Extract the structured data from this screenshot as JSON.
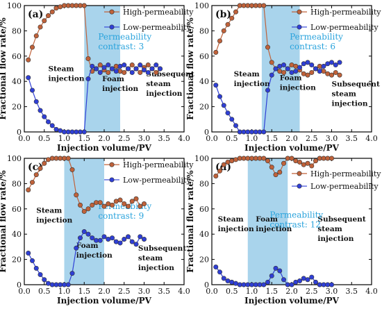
{
  "colors": {
    "high": "#c0623a",
    "low": "#2f3fd6",
    "foam_band": "#a9d4ec",
    "contrast_text": "#2aa3dc"
  },
  "chart_data": [
    {
      "type": "line",
      "panel_label": "(a)",
      "xlabel": "Injection volume/PV",
      "ylabel": "Fractional flow rate/%",
      "xlim": [
        0.0,
        4.0
      ],
      "ylim": [
        0,
        100
      ],
      "x_ticks": [
        "0.0",
        "0.5",
        "1.0",
        "1.5",
        "2.0",
        "2.5",
        "3.0",
        "3.5",
        "4.0"
      ],
      "y_ticks": [
        "0",
        "20",
        "40",
        "60",
        "80",
        "100"
      ],
      "foam_band": [
        1.5,
        2.4
      ],
      "annotation": "Permeability contrast: 3",
      "annotation_lines": [
        "Permeability",
        "contrast: 3"
      ],
      "phase_labels": [
        {
          "lines": [
            "Steam",
            "injection"
          ]
        },
        {
          "lines": [
            "Foam",
            "injection"
          ]
        },
        {
          "lines": [
            "Subsequent",
            "steam",
            "injection"
          ]
        }
      ],
      "legend_position": "top-right",
      "series": [
        {
          "name": "High-permeability",
          "x": [
            0.1,
            0.2,
            0.3,
            0.4,
            0.5,
            0.6,
            0.7,
            0.8,
            0.9,
            1.0,
            1.1,
            1.2,
            1.3,
            1.4,
            1.5,
            1.6,
            1.7,
            1.8,
            1.9,
            2.0,
            2.1,
            2.2,
            2.3,
            2.4,
            2.5,
            2.6,
            2.7,
            2.8,
            2.9,
            3.0,
            3.1,
            3.2,
            3.3,
            3.4
          ],
          "y": [
            57,
            67,
            76,
            83,
            88,
            92,
            95,
            98,
            99,
            100,
            100,
            100,
            100,
            100,
            100,
            58,
            48,
            50,
            53,
            49,
            47,
            50,
            52,
            48,
            47,
            50,
            53,
            50,
            47,
            51,
            53,
            50,
            47,
            50
          ]
        },
        {
          "name": "Low-permeability",
          "x": [
            0.1,
            0.2,
            0.3,
            0.4,
            0.5,
            0.6,
            0.7,
            0.8,
            0.9,
            1.0,
            1.1,
            1.2,
            1.3,
            1.4,
            1.5,
            1.6,
            1.7,
            1.8,
            1.9,
            2.0,
            2.1,
            2.2,
            2.3,
            2.4,
            2.5,
            2.6,
            2.7,
            2.8,
            2.9,
            3.0,
            3.1,
            3.2,
            3.3,
            3.4
          ],
          "y": [
            43,
            33,
            24,
            17,
            12,
            8,
            5,
            2,
            1,
            0,
            0,
            0,
            0,
            0,
            0,
            42,
            52,
            50,
            47,
            51,
            53,
            50,
            48,
            52,
            53,
            50,
            47,
            50,
            53,
            49,
            47,
            50,
            53,
            50
          ]
        }
      ]
    },
    {
      "type": "line",
      "panel_label": "(b)",
      "xlabel": "Injection volume/PV",
      "ylabel": "Fractional flow rate/%",
      "xlim": [
        0.0,
        4.0
      ],
      "ylim": [
        0,
        100
      ],
      "x_ticks": [
        "0.0",
        "0.5",
        "1.0",
        "1.5",
        "2.0",
        "2.5",
        "3.0",
        "3.5",
        "4.0"
      ],
      "y_ticks": [
        "0",
        "20",
        "40",
        "60",
        "80",
        "100"
      ],
      "foam_band": [
        1.25,
        2.2
      ],
      "annotation": "Permeability contrast: 6",
      "annotation_lines": [
        "Permeability",
        "contrast: 6"
      ],
      "phase_labels": [
        {
          "lines": [
            "Steam",
            "injection"
          ]
        },
        {
          "lines": [
            "Foam",
            "injection"
          ]
        },
        {
          "lines": [
            "Subsequent",
            "steam",
            "injection"
          ]
        }
      ],
      "legend_position": "top-right",
      "series": [
        {
          "name": "High-permeability",
          "x": [
            0.1,
            0.2,
            0.3,
            0.4,
            0.5,
            0.6,
            0.7,
            0.8,
            0.9,
            1.0,
            1.1,
            1.2,
            1.3,
            1.4,
            1.5,
            1.6,
            1.7,
            1.8,
            1.9,
            2.0,
            2.1,
            2.2,
            2.3,
            2.4,
            2.5,
            2.6,
            2.7,
            2.8,
            2.9,
            3.0,
            3.1,
            3.2
          ],
          "y": [
            63,
            72,
            80,
            85,
            90,
            95,
            100,
            100,
            100,
            100,
            100,
            100,
            100,
            67,
            55,
            50,
            48,
            47,
            50,
            53,
            52,
            49,
            46,
            45,
            47,
            50,
            52,
            48,
            46,
            45,
            47,
            45
          ]
        },
        {
          "name": "Low-permeability",
          "x": [
            0.1,
            0.2,
            0.3,
            0.4,
            0.5,
            0.6,
            0.7,
            0.8,
            0.9,
            1.0,
            1.1,
            1.2,
            1.3,
            1.4,
            1.5,
            1.6,
            1.7,
            1.8,
            1.9,
            2.0,
            2.1,
            2.2,
            2.3,
            2.4,
            2.5,
            2.6,
            2.7,
            2.8,
            2.9,
            3.0,
            3.1,
            3.2
          ],
          "y": [
            37,
            28,
            21,
            15,
            10,
            5,
            0,
            0,
            0,
            0,
            0,
            0,
            0,
            33,
            45,
            50,
            52,
            53,
            50,
            47,
            48,
            51,
            54,
            55,
            53,
            50,
            48,
            52,
            54,
            55,
            53,
            55
          ]
        }
      ]
    },
    {
      "type": "line",
      "panel_label": "(c)",
      "xlabel": "Injection volume/PV",
      "ylabel": "Fractional flow rate/%",
      "xlim": [
        0.0,
        4.0
      ],
      "ylim": [
        0,
        100
      ],
      "x_ticks": [
        "0.0",
        "0.5",
        "1.0",
        "1.5",
        "2.0",
        "2.5",
        "3.0",
        "3.5",
        "4.0"
      ],
      "y_ticks": [
        "0",
        "20",
        "40",
        "60",
        "80",
        "100"
      ],
      "foam_band": [
        1.0,
        2.0
      ],
      "annotation": "Permeability contrast: 9",
      "annotation_lines": [
        "Permeability",
        "contrast: 9"
      ],
      "phase_labels": [
        {
          "lines": [
            "Steam",
            "injection"
          ]
        },
        {
          "lines": [
            "Foam",
            "injection"
          ]
        },
        {
          "lines": [
            "Subsequent",
            "steam",
            "injection"
          ]
        }
      ],
      "legend_position": "top-right",
      "series": [
        {
          "name": "High-permeability",
          "x": [
            0.1,
            0.2,
            0.3,
            0.4,
            0.5,
            0.6,
            0.7,
            0.8,
            0.9,
            1.0,
            1.1,
            1.2,
            1.3,
            1.4,
            1.5,
            1.6,
            1.7,
            1.8,
            1.9,
            2.0,
            2.1,
            2.2,
            2.3,
            2.4,
            2.5,
            2.6,
            2.7,
            2.8,
            2.9,
            3.0
          ],
          "y": [
            75,
            81,
            87,
            92,
            96,
            99,
            100,
            100,
            100,
            100,
            100,
            91,
            71,
            63,
            58,
            60,
            63,
            65,
            65,
            62,
            64,
            63,
            66,
            67,
            64,
            62,
            66,
            68,
            62,
            64
          ]
        },
        {
          "name": "Low-permeability",
          "x": [
            0.1,
            0.2,
            0.3,
            0.4,
            0.5,
            0.6,
            0.7,
            0.8,
            0.9,
            1.0,
            1.1,
            1.2,
            1.3,
            1.4,
            1.5,
            1.6,
            1.7,
            1.8,
            1.9,
            2.0,
            2.1,
            2.2,
            2.3,
            2.4,
            2.5,
            2.6,
            2.7,
            2.8,
            2.9,
            3.0
          ],
          "y": [
            25,
            19,
            13,
            8,
            4,
            1,
            0,
            0,
            0,
            0,
            0,
            9,
            29,
            37,
            42,
            40,
            37,
            35,
            35,
            38,
            36,
            37,
            34,
            33,
            36,
            38,
            34,
            32,
            38,
            36
          ]
        }
      ]
    },
    {
      "type": "line",
      "panel_label": "(d)",
      "xlabel": "Injection volume/PV",
      "ylabel": "Fractional flow rate/%",
      "xlim": [
        0.0,
        4.0
      ],
      "ylim": [
        0,
        100
      ],
      "x_ticks": [
        "0.0",
        "0.5",
        "1.0",
        "1.5",
        "2.0",
        "2.5",
        "3.0",
        "3.5",
        "4.0"
      ],
      "y_ticks": [
        "0",
        "20",
        "40",
        "60",
        "80",
        "100"
      ],
      "foam_band": [
        0.9,
        1.9
      ],
      "annotation": "Permeability contrast: 12",
      "annotation_lines": [
        "Permeability",
        "contrast: 12"
      ],
      "phase_labels": [
        {
          "lines": [
            "Steam",
            "injection"
          ]
        },
        {
          "lines": [
            "Foam",
            "injection"
          ]
        },
        {
          "lines": [
            "Subsequent",
            "steam",
            "injection"
          ]
        }
      ],
      "legend_position": "top-right",
      "series": [
        {
          "name": "High-permeability",
          "x": [
            0.1,
            0.2,
            0.3,
            0.4,
            0.5,
            0.6,
            0.7,
            0.8,
            0.9,
            1.0,
            1.1,
            1.2,
            1.3,
            1.4,
            1.5,
            1.6,
            1.7,
            1.8,
            1.9,
            2.0,
            2.1,
            2.2,
            2.3,
            2.4,
            2.5,
            2.6,
            2.7,
            2.8,
            2.9,
            3.0
          ],
          "y": [
            86,
            90,
            95,
            97,
            98,
            99,
            100,
            100,
            100,
            100,
            100,
            100,
            100,
            98,
            93,
            87,
            89,
            96,
            100,
            100,
            98,
            97,
            95,
            96,
            94,
            98,
            100,
            100,
            100,
            100
          ]
        },
        {
          "name": "Low-permeability",
          "x": [
            0.1,
            0.2,
            0.3,
            0.4,
            0.5,
            0.6,
            0.7,
            0.8,
            0.9,
            1.0,
            1.1,
            1.2,
            1.3,
            1.4,
            1.5,
            1.6,
            1.7,
            1.8,
            1.9,
            2.0,
            2.1,
            2.2,
            2.3,
            2.4,
            2.5,
            2.6,
            2.7,
            2.8,
            2.9,
            3.0
          ],
          "y": [
            14,
            10,
            5,
            3,
            2,
            1,
            0,
            0,
            0,
            0,
            0,
            0,
            0,
            2,
            7,
            13,
            11,
            4,
            0,
            0,
            2,
            3,
            5,
            4,
            6,
            2,
            0,
            0,
            0,
            0
          ]
        }
      ]
    }
  ]
}
